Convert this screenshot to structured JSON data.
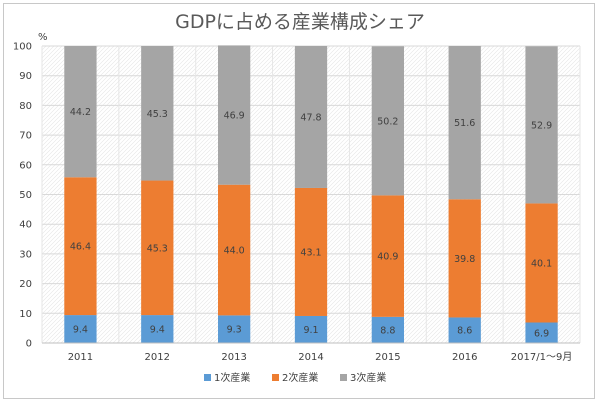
{
  "chart_data": {
    "type": "bar",
    "stacked": true,
    "title": "GDPに占める産業構成シェア",
    "unit_label": "%",
    "categories": [
      "2011",
      "2012",
      "2013",
      "2014",
      "2015",
      "2016",
      "2017/1～9月"
    ],
    "series": [
      {
        "name": "1次産業",
        "color": "#5b9bd5",
        "values": [
          9.4,
          9.4,
          9.3,
          9.1,
          8.8,
          8.6,
          6.9
        ]
      },
      {
        "name": "2次産業",
        "color": "#ed7d31",
        "values": [
          46.4,
          45.3,
          44.0,
          43.1,
          40.9,
          39.8,
          40.1
        ]
      },
      {
        "name": "3次産業",
        "color": "#a5a5a5",
        "values": [
          44.2,
          45.3,
          46.9,
          47.8,
          50.2,
          51.6,
          52.9
        ]
      }
    ],
    "ylim": [
      0,
      100
    ],
    "yticks": [
      0,
      10,
      20,
      30,
      40,
      50,
      60,
      70,
      80,
      90,
      100
    ],
    "grid": true,
    "legend_position": "bottom"
  }
}
